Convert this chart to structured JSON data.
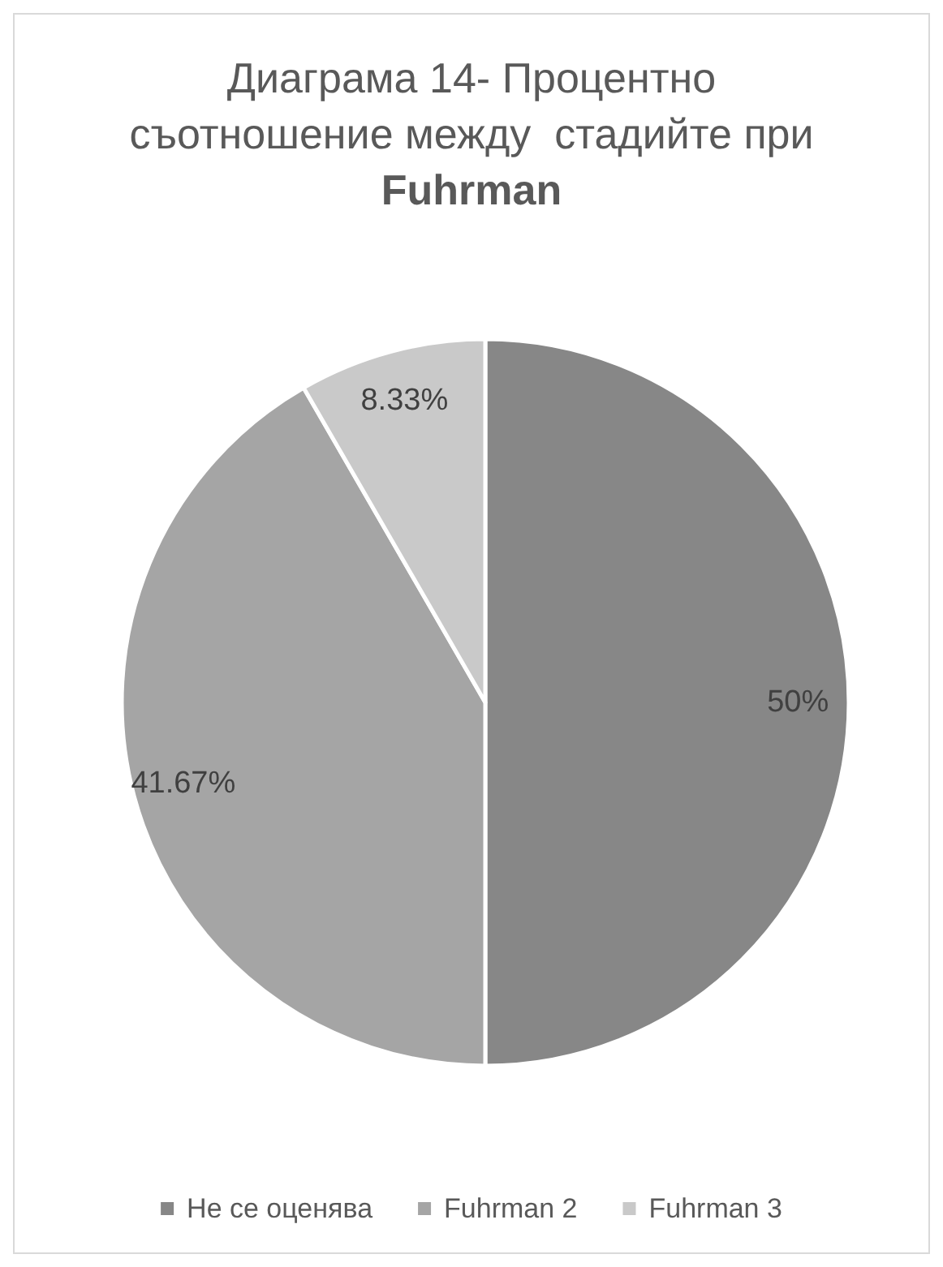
{
  "chart_data": {
    "type": "pie",
    "title": "Диаграма 14- Процентно съотношение между  стадийте при Fuhrman",
    "categories": [
      "Не се оценява",
      "Fuhrman 2",
      "Fuhrman 3"
    ],
    "values": [
      50,
      41.67,
      8.33
    ],
    "colors": [
      "#878787",
      "#a5a5a5",
      "#c9c9c9"
    ],
    "value_labels": [
      "50%",
      "41.67%",
      "8.33%"
    ],
    "legend": "bottom"
  }
}
